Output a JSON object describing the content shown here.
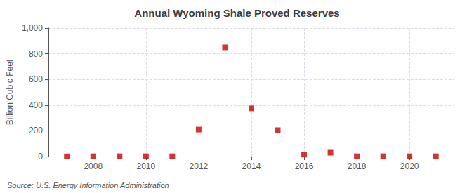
{
  "chart_data": {
    "type": "scatter",
    "title": "Annual Wyoming Shale Proved Reserves",
    "ylabel": "Billion Cubic Feet",
    "source": "Source: U.S. Energy Information Administration",
    "x": [
      2007,
      2008,
      2009,
      2010,
      2011,
      2012,
      2013,
      2014,
      2015,
      2016,
      2017,
      2018,
      2019,
      2020,
      2021
    ],
    "values": [
      1,
      2,
      2,
      2,
      2,
      210,
      850,
      375,
      205,
      15,
      30,
      2,
      2,
      2,
      2
    ],
    "color": "#cc0000",
    "marker": "square",
    "xlim": [
      2006.3,
      2021.7
    ],
    "xticks": [
      2008,
      2010,
      2012,
      2014,
      2016,
      2018,
      2020
    ],
    "ylim": [
      0,
      1000
    ],
    "yticks": [
      0,
      200,
      400,
      600,
      800,
      {
        "value": 1000,
        "label": "1,000"
      }
    ],
    "grid": true
  }
}
